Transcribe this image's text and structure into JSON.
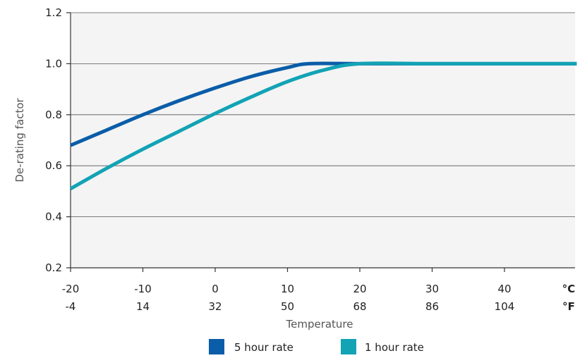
{
  "chart_data": {
    "type": "line",
    "title": "",
    "xlabel": "Temperature",
    "ylabel": "De-rating factor",
    "xlim": [
      -20,
      50
    ],
    "ylim": [
      0.2,
      1.2
    ],
    "x_ticks_c": [
      "-20",
      "-10",
      "0",
      "10",
      "20",
      "30",
      "40"
    ],
    "x_ticks_f": [
      "-4",
      "14",
      "32",
      "50",
      "68",
      "86",
      "104"
    ],
    "unit_c": "°C",
    "unit_f": "°F",
    "y_ticks": [
      "0.2",
      "0.4",
      "0.6",
      "0.8",
      "1.0",
      "1.2"
    ],
    "grid": "horizontal",
    "legend_position": "bottom",
    "series": [
      {
        "name": "5 hour rate",
        "color": "#0a5da8",
        "points": [
          [
            -20,
            0.68
          ],
          [
            -15,
            0.74
          ],
          [
            -10,
            0.8
          ],
          [
            -5,
            0.855
          ],
          [
            0,
            0.905
          ],
          [
            5,
            0.95
          ],
          [
            10,
            0.985
          ],
          [
            13,
            1.0
          ],
          [
            20,
            1.0
          ],
          [
            30,
            1.0
          ],
          [
            40,
            1.0
          ],
          [
            50,
            1.0
          ]
        ]
      },
      {
        "name": "1 hour rate",
        "color": "#12a3b5",
        "points": [
          [
            -20,
            0.51
          ],
          [
            -15,
            0.59
          ],
          [
            -10,
            0.665
          ],
          [
            -5,
            0.735
          ],
          [
            0,
            0.805
          ],
          [
            5,
            0.87
          ],
          [
            10,
            0.93
          ],
          [
            15,
            0.975
          ],
          [
            20,
            1.0
          ],
          [
            30,
            1.0
          ],
          [
            40,
            1.0
          ],
          [
            50,
            1.0
          ]
        ]
      }
    ]
  }
}
